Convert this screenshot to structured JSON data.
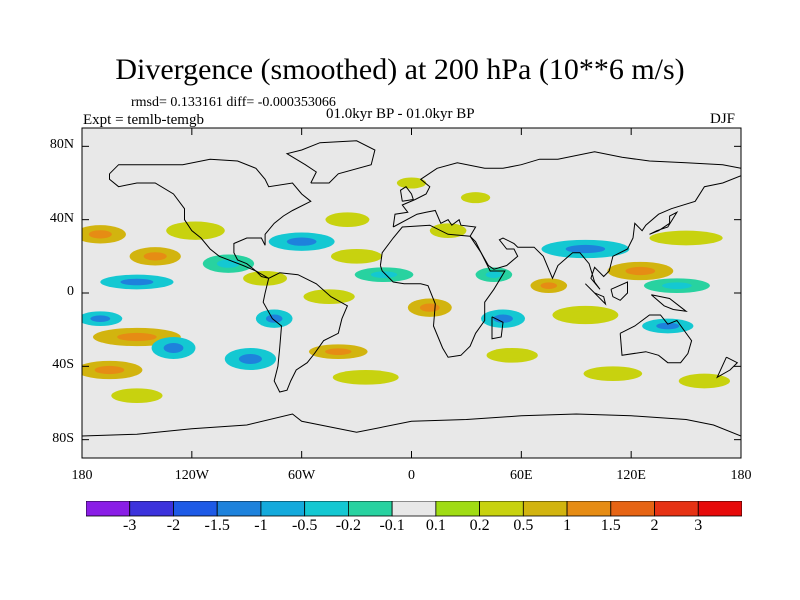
{
  "title": "Divergence (smoothed) at 200 hPa (10**6 m/s)",
  "stats": "rmsd= 0.133161 diff= -0.000353066",
  "experiment": "Expt = temlb-temgb",
  "period": "01.0kyr BP - 01.0kyr BP",
  "season": "DJF",
  "map": {
    "y_ticks": [
      {
        "label": "80N",
        "lat": 80
      },
      {
        "label": "40N",
        "lat": 40
      },
      {
        "label": "0",
        "lat": 0
      },
      {
        "label": "40S",
        "lat": -40
      },
      {
        "label": "80S",
        "lat": -80
      }
    ],
    "x_ticks": [
      {
        "label": "180",
        "lon": -180
      },
      {
        "label": "120W",
        "lon": -120
      },
      {
        "label": "60W",
        "lon": -60
      },
      {
        "label": "0",
        "lon": 0
      },
      {
        "label": "60E",
        "lon": 60
      },
      {
        "label": "120E",
        "lon": 120
      },
      {
        "label": "180",
        "lon": 180
      }
    ],
    "background_color": "#e8e8e8",
    "coastline_color": "#000000"
  },
  "colorbar": {
    "labels": [
      "-3",
      "-2",
      "-1.5",
      "-1",
      "-0.5",
      "-0.2",
      "-0.1",
      "0.1",
      "0.2",
      "0.5",
      "1",
      "1.5",
      "2",
      "3"
    ],
    "colors": [
      "#8a1ee6",
      "#3c32dc",
      "#1e5ae6",
      "#1e82dc",
      "#14aadc",
      "#14c8d2",
      "#28d2a0",
      "#e8e8e8",
      "#a0dc14",
      "#c8d20f",
      "#d2b40f",
      "#e68c14",
      "#e66414",
      "#e63214",
      "#e60a0a"
    ]
  },
  "blobs": [
    {
      "lon": -170,
      "lat": 32,
      "rx": 14,
      "ry": 5,
      "value": 0.5
    },
    {
      "lon": -140,
      "lat": 20,
      "rx": 14,
      "ry": 5,
      "value": 0.5
    },
    {
      "lon": -150,
      "lat": 6,
      "rx": 20,
      "ry": 4,
      "value": -0.5
    },
    {
      "lon": -170,
      "lat": -14,
      "rx": 12,
      "ry": 4,
      "value": -0.5
    },
    {
      "lon": -150,
      "lat": -24,
      "rx": 24,
      "ry": 5,
      "value": 0.5
    },
    {
      "lon": -130,
      "lat": -30,
      "rx": 12,
      "ry": 6,
      "value": -0.5
    },
    {
      "lon": -165,
      "lat": -42,
      "rx": 18,
      "ry": 5,
      "value": 0.5
    },
    {
      "lon": -150,
      "lat": -56,
      "rx": 14,
      "ry": 4,
      "value": 0.2
    },
    {
      "lon": -118,
      "lat": 34,
      "rx": 16,
      "ry": 5,
      "value": 0.2
    },
    {
      "lon": -100,
      "lat": 16,
      "rx": 14,
      "ry": 5,
      "value": -0.2
    },
    {
      "lon": -80,
      "lat": 8,
      "rx": 12,
      "ry": 4,
      "value": 0.2
    },
    {
      "lon": -75,
      "lat": -14,
      "rx": 10,
      "ry": 5,
      "value": -0.5
    },
    {
      "lon": -88,
      "lat": -36,
      "rx": 14,
      "ry": 6,
      "value": -0.5
    },
    {
      "lon": -60,
      "lat": 28,
      "rx": 18,
      "ry": 5,
      "value": -0.5
    },
    {
      "lon": -35,
      "lat": 40,
      "rx": 12,
      "ry": 4,
      "value": 0.2
    },
    {
      "lon": -30,
      "lat": 20,
      "rx": 14,
      "ry": 4,
      "value": 0.2
    },
    {
      "lon": -15,
      "lat": 10,
      "rx": 16,
      "ry": 4,
      "value": -0.2
    },
    {
      "lon": -45,
      "lat": -2,
      "rx": 14,
      "ry": 4,
      "value": 0.2
    },
    {
      "lon": -40,
      "lat": -32,
      "rx": 16,
      "ry": 4,
      "value": 0.5
    },
    {
      "lon": -25,
      "lat": -46,
      "rx": 18,
      "ry": 4,
      "value": 0.2
    },
    {
      "lon": 0,
      "lat": 60,
      "rx": 8,
      "ry": 3,
      "value": 0.2
    },
    {
      "lon": 20,
      "lat": 34,
      "rx": 10,
      "ry": 4,
      "value": 0.2
    },
    {
      "lon": 10,
      "lat": -8,
      "rx": 12,
      "ry": 5,
      "value": 0.5
    },
    {
      "lon": 45,
      "lat": 10,
      "rx": 10,
      "ry": 4,
      "value": -0.2
    },
    {
      "lon": 50,
      "lat": -14,
      "rx": 12,
      "ry": 5,
      "value": -0.5
    },
    {
      "lon": 55,
      "lat": -34,
      "rx": 14,
      "ry": 4,
      "value": 0.2
    },
    {
      "lon": 95,
      "lat": 24,
      "rx": 24,
      "ry": 5,
      "value": -0.5
    },
    {
      "lon": 75,
      "lat": 4,
      "rx": 10,
      "ry": 4,
      "value": 0.5
    },
    {
      "lon": 95,
      "lat": -12,
      "rx": 18,
      "ry": 5,
      "value": 0.2
    },
    {
      "lon": 125,
      "lat": 12,
      "rx": 18,
      "ry": 5,
      "value": 0.5
    },
    {
      "lon": 150,
      "lat": 30,
      "rx": 20,
      "ry": 4,
      "value": 0.2
    },
    {
      "lon": 145,
      "lat": 4,
      "rx": 18,
      "ry": 4,
      "value": -0.2
    },
    {
      "lon": 140,
      "lat": -18,
      "rx": 14,
      "ry": 4,
      "value": -0.5
    },
    {
      "lon": 110,
      "lat": -44,
      "rx": 16,
      "ry": 4,
      "value": 0.2
    },
    {
      "lon": 160,
      "lat": -48,
      "rx": 14,
      "ry": 4,
      "value": 0.2
    },
    {
      "lon": 35,
      "lat": 52,
      "rx": 8,
      "ry": 3,
      "value": 0.2
    }
  ]
}
